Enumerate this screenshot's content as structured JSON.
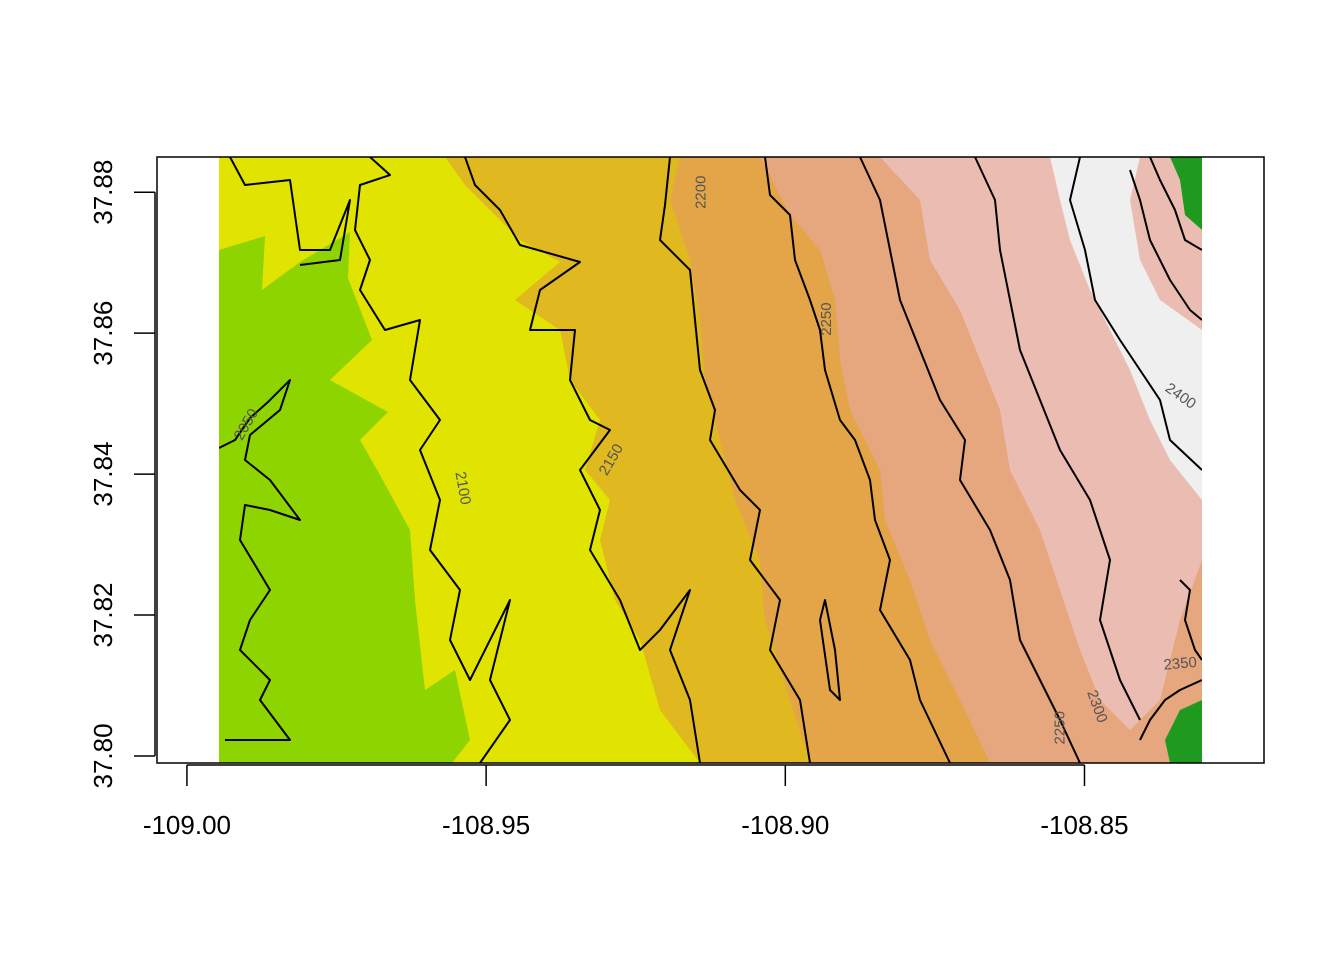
{
  "colors": {
    "band_2000": "#8ed400",
    "band_2050": "#e0e400",
    "band_2100": "#e0e400",
    "band_2150": "#e0b820",
    "band_2200": "#e4a448",
    "band_2250": "#e6a67e",
    "band_2300": "#ebbdb2",
    "band_2350": "#eab8b0",
    "band_2400": "#efefef",
    "dark_green": "#1f9a1f"
  },
  "chart_data": {
    "type": "heatmap",
    "title": "",
    "xlabel": "",
    "ylabel": "",
    "xlim": [
      -109.005,
      -108.82
    ],
    "ylim": [
      37.799,
      37.885
    ],
    "x_ticks": [
      "-109.00",
      "-108.95",
      "-108.90",
      "-108.85"
    ],
    "y_ticks": [
      "37.80",
      "37.82",
      "37.84",
      "37.86",
      "37.88"
    ],
    "raster_extent_x": [
      -108.996,
      -108.823
    ],
    "raster_extent_y": [
      37.799,
      37.883
    ],
    "contour_levels": [
      2050,
      2100,
      2150,
      2200,
      2250,
      2300,
      2350,
      2400
    ],
    "contour_labels": [
      {
        "text": "2050",
        "x": -108.99,
        "y": 37.847
      },
      {
        "text": "2100",
        "x": -108.954,
        "y": 37.838
      },
      {
        "text": "2150",
        "x": -108.929,
        "y": 37.842
      },
      {
        "text": "2200",
        "x": -108.914,
        "y": 37.88
      },
      {
        "text": "2250",
        "x": -108.893,
        "y": 37.862
      },
      {
        "text": "2250",
        "x": -108.854,
        "y": 37.804
      },
      {
        "text": "2300",
        "x": -108.848,
        "y": 37.807
      },
      {
        "text": "2350",
        "x": -108.834,
        "y": 37.813
      },
      {
        "text": "2400",
        "x": -108.834,
        "y": 37.851
      }
    ],
    "grid": false,
    "legend": "none"
  }
}
